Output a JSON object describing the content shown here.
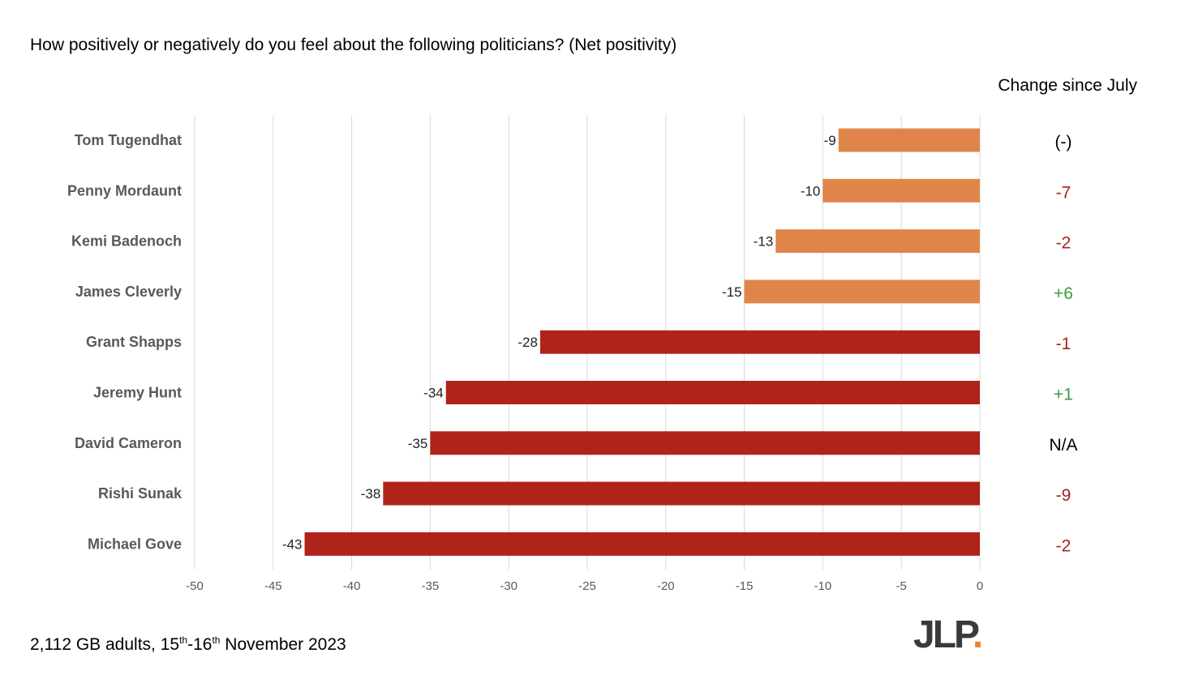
{
  "title": "How positively or negatively do you feel about the following politicians? (Net positivity)",
  "change_header": "Change since July",
  "footnote": {
    "prefix": "2,112 GB adults, 15",
    "sup1": "th",
    "mid": "-16",
    "sup2": "th",
    "suffix": " November 2023"
  },
  "logo": {
    "text": "JLP",
    "dot": "."
  },
  "colors": {
    "orange": "#E0854A",
    "red": "#B0231A",
    "change_negative": "#A9211A",
    "change_positive": "#3C9A3A",
    "change_neutral": "#000000",
    "grid": "#d9d9d9",
    "label": "#595959"
  },
  "chart_data": {
    "type": "bar",
    "orientation": "horizontal",
    "categories": [
      "Tom Tugendhat",
      "Penny Mordaunt",
      "Kemi Badenoch",
      "James Cleverly",
      "Grant Shapps",
      "Jeremy Hunt",
      "David Cameron",
      "Rishi Sunak",
      "Michael Gove"
    ],
    "values": [
      -9,
      -10,
      -13,
      -15,
      -28,
      -34,
      -35,
      -38,
      -43
    ],
    "bar_colors": [
      "orange",
      "orange",
      "orange",
      "orange",
      "red",
      "red",
      "red",
      "red",
      "red"
    ],
    "data_labels": [
      "-9",
      "-10",
      "-13",
      "-15",
      "-28",
      "-34",
      "-35",
      "-38",
      "-43"
    ],
    "change_since_july": [
      "(-)",
      "-7",
      "-2",
      "+6",
      "-1",
      "+1",
      "N/A",
      "-9",
      "-2"
    ],
    "change_colors": [
      "change_neutral",
      "change_negative",
      "change_negative",
      "change_positive",
      "change_negative",
      "change_positive",
      "change_neutral",
      "change_negative",
      "change_negative"
    ],
    "xlim": [
      -50,
      0
    ],
    "xticks": [
      -50,
      -45,
      -40,
      -35,
      -30,
      -25,
      -20,
      -15,
      -10,
      -5,
      0
    ],
    "grid": true,
    "title": "How positively or negatively do you feel about the following politicians? (Net positivity)"
  }
}
